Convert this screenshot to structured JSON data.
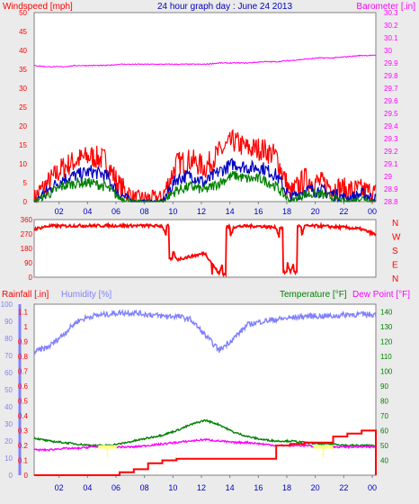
{
  "title": "24 hour graph day : June 24 2013",
  "panel1": {
    "left_label": "Windspeed [mph]",
    "right_label": "Barometer [.in]",
    "left_ticks": [
      "0",
      "5",
      "10",
      "15",
      "20",
      "25",
      "30",
      "35",
      "40",
      "45",
      "50"
    ],
    "right_ticks": [
      "28.8",
      "28.9",
      "29",
      "29.1",
      "29.2",
      "29.3",
      "29.4",
      "29.5",
      "29.6",
      "29.7",
      "29.8",
      "29.9",
      "30",
      "30.1",
      "30.2",
      "30.3"
    ]
  },
  "panel2": {
    "left_ticks": [
      "0",
      "90",
      "180",
      "270",
      "360"
    ],
    "compass": [
      "N",
      "W",
      "S",
      "E",
      "N"
    ]
  },
  "panel3": {
    "rain_label": "Rainfall [.in]",
    "humidity_label": "Humidity [%]",
    "temp_label": "Temperature [°F]",
    "dew_label": "Dew Point [°F]",
    "rain_ticks": [
      "0",
      "0.1",
      "0.2",
      "0.3",
      "0.4",
      "0.5",
      "0.6",
      "0.7",
      "0.8",
      "0.9",
      "1",
      "1.1"
    ],
    "humidity_ticks": [
      "0",
      "10",
      "20",
      "30",
      "40",
      "50",
      "60",
      "70",
      "80",
      "90",
      "100"
    ],
    "temp_ticks": [
      "40",
      "50",
      "60",
      "70",
      "80",
      "90",
      "100",
      "110",
      "120",
      "130",
      "140"
    ]
  },
  "x_ticks": [
    "02",
    "04",
    "06",
    "08",
    "10",
    "12",
    "14",
    "16",
    "18",
    "20",
    "22",
    "00"
  ],
  "colors": {
    "wind_gust": "#ff0000",
    "wind_avg": "#0000c0",
    "wind_min": "#008000",
    "barometer": "#ff00ff",
    "direction": "#ff0000",
    "humidity": "#8080ff",
    "temperature": "#008000",
    "dew_point": "#ff00ff",
    "rainfall": "#ff0000",
    "solar": "#ffff80",
    "title": "#0000c0",
    "plot_bg": "#ffffff"
  },
  "chart_data": [
    {
      "type": "line",
      "title": "24 hour graph day : June 24 2013",
      "xlabel": "",
      "ylabel": "Windspeed [mph]",
      "ylabel_right": "Barometer [.in]",
      "x": [
        0,
        1,
        2,
        3,
        4,
        5,
        6,
        7,
        8,
        9,
        10,
        11,
        12,
        13,
        14,
        15,
        16,
        17,
        18,
        19,
        20,
        21,
        22,
        23,
        24
      ],
      "ylim": [
        0,
        50
      ],
      "ylim_right": [
        28.8,
        30.3
      ],
      "grid": false,
      "series": [
        {
          "values": [
            1,
            5,
            9,
            11,
            12,
            11,
            4,
            1,
            1,
            1,
            10,
            11,
            9,
            13,
            16,
            14,
            14,
            12,
            2,
            6,
            5,
            4,
            3,
            3,
            2
          ]
        },
        {
          "values": [
            0,
            3,
            6,
            7,
            8,
            7,
            2,
            0,
            0,
            0,
            6,
            7,
            5,
            8,
            10,
            9,
            9,
            7,
            1,
            3,
            3,
            2,
            1,
            2,
            1
          ]
        },
        {
          "values": [
            0,
            2,
            4,
            5,
            5,
            4,
            1,
            0,
            0,
            0,
            3,
            4,
            3,
            5,
            7,
            6,
            6,
            4,
            0,
            2,
            2,
            1,
            0,
            1,
            0
          ]
        },
        {
          "axis": "right",
          "values": [
            29.88,
            29.87,
            29.87,
            29.88,
            29.88,
            29.88,
            29.89,
            29.89,
            29.89,
            29.89,
            29.89,
            29.89,
            29.89,
            29.9,
            29.9,
            29.9,
            29.91,
            29.91,
            29.92,
            29.93,
            29.94,
            29.94,
            29.95,
            29.96,
            29.96
          ]
        }
      ]
    },
    {
      "type": "line",
      "ylabel": "",
      "x": [
        0,
        1,
        2,
        3,
        4,
        5,
        6,
        7,
        8,
        9,
        10,
        11,
        12,
        13,
        14,
        15,
        16,
        17,
        18,
        19,
        20,
        21,
        22,
        23,
        24
      ],
      "ylim": [
        0,
        360
      ],
      "grid": false,
      "series": [
        {
          "values": [
            300,
            320,
            320,
            322,
            322,
            322,
            322,
            322,
            322,
            320,
            110,
            130,
            150,
            20,
            315,
            320,
            318,
            310,
            30,
            320,
            320,
            315,
            310,
            300,
            265
          ]
        }
      ]
    },
    {
      "type": "line",
      "ylabel": "Humidity [%]",
      "ylabel_right": "Temperature [°F]",
      "ylabel_left_outer": "Rainfall [.in]",
      "x": [
        0,
        1,
        2,
        3,
        4,
        5,
        6,
        7,
        8,
        9,
        10,
        11,
        12,
        13,
        14,
        15,
        16,
        17,
        18,
        19,
        20,
        21,
        22,
        23,
        24
      ],
      "ylim": [
        0,
        100
      ],
      "ylim_rain": [
        0,
        1.15
      ],
      "ylim_right": [
        30,
        145
      ],
      "grid": false,
      "series": [
        {
          "name": "Humidity [%]",
          "values": [
            72,
            75,
            82,
            90,
            93,
            94,
            95,
            95,
            94,
            93,
            93,
            91,
            82,
            73,
            80,
            88,
            90,
            91,
            92,
            93,
            93,
            93,
            94,
            94,
            94
          ]
        },
        {
          "name": "Temperature [°F]",
          "values": [
            55,
            53,
            52,
            51,
            50,
            50,
            51,
            53,
            55,
            57,
            60,
            64,
            67,
            64,
            59,
            56,
            54,
            53,
            53,
            52,
            51,
            51,
            50,
            50,
            50
          ]
        },
        {
          "name": "Dew Point [°F]",
          "values": [
            47,
            47,
            48,
            48,
            49,
            49,
            49,
            49,
            50,
            51,
            52,
            53,
            54,
            53,
            52,
            52,
            51,
            50,
            50,
            50,
            49,
            49,
            49,
            49,
            49
          ]
        },
        {
          "name": "Rainfall [.in]",
          "values": [
            0,
            0,
            0,
            0,
            0,
            0,
            0.02,
            0.04,
            0.08,
            0.1,
            0.11,
            0.11,
            0.11,
            0.11,
            0.11,
            0.11,
            0.11,
            0.2,
            0.21,
            0.22,
            0.22,
            0.26,
            0.28,
            0.3,
            0.3
          ]
        }
      ]
    }
  ]
}
